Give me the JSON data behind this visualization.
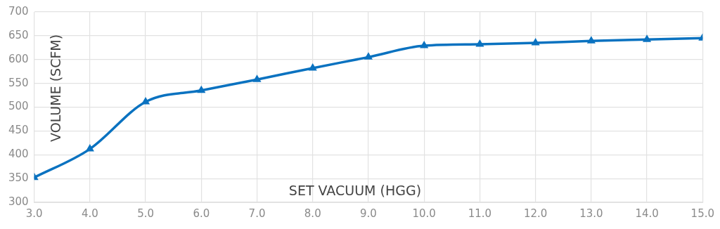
{
  "chart_data": {
    "type": "line",
    "xlabel": "SET VACUUM (HGG)",
    "ylabel": "VOLUME (SCFM)",
    "x": [
      3,
      4,
      5,
      6,
      7,
      8,
      9,
      10,
      11,
      12,
      13,
      14,
      15
    ],
    "series": [
      {
        "color": "#0a72c0",
        "values": [
          352,
          412,
          511,
          535,
          558,
          582,
          605,
          629,
          632,
          635,
          639,
          642,
          645
        ]
      }
    ],
    "xlim": [
      3,
      15
    ],
    "xticks": [
      {
        "value": 3,
        "label": "3.0"
      },
      {
        "value": 4,
        "label": "4.0"
      },
      {
        "value": 5,
        "label": "5.0"
      },
      {
        "value": 6,
        "label": "6.0"
      },
      {
        "value": 7,
        "label": "7.0"
      },
      {
        "value": 8,
        "label": "8.0"
      },
      {
        "value": 9,
        "label": "9.0"
      },
      {
        "value": 10,
        "label": "10.0"
      },
      {
        "value": 11,
        "label": "11.0"
      },
      {
        "value": 12,
        "label": "12.0"
      },
      {
        "value": 13,
        "label": "13.0"
      },
      {
        "value": 14,
        "label": "14.0"
      },
      {
        "value": 15,
        "label": "15.0"
      }
    ],
    "ylim": [
      300,
      700
    ],
    "yticks": [
      300,
      350,
      400,
      450,
      500,
      550,
      600,
      650,
      700
    ],
    "grid": true,
    "legend": false,
    "marker": "triangle",
    "line_style": "solid"
  }
}
